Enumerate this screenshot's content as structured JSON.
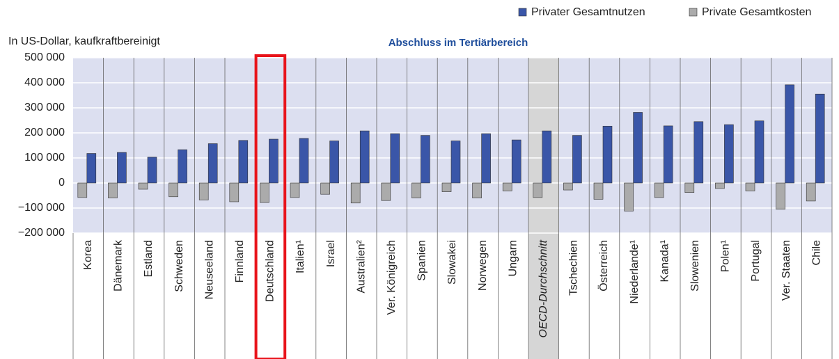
{
  "chart_data": {
    "type": "bar",
    "title": "Abschluss im Tertiärbereich",
    "ylabel": "In US-Dollar, kaufkraftbereinigt",
    "categories": [
      "Korea",
      "Dänemark",
      "Estland",
      "Schweden",
      "Neuseeland",
      "Finnland",
      "Deutschland",
      "Italien¹",
      "Israel",
      "Australien²",
      "Ver. Königreich",
      "Spanien",
      "Slowakei",
      "Norwegen",
      "Ungarn",
      "OECD-Durchschnitt",
      "Tschechien",
      "Österreich",
      "Niederlande¹",
      "Kanada¹",
      "Slowenien",
      "Polen¹",
      "Portugal",
      "Ver. Staaten",
      "Chile"
    ],
    "series": [
      {
        "name": "Privater Gesamtnutzen",
        "color": "#3a56a8",
        "values": [
          118000,
          122000,
          103000,
          133000,
          157000,
          170000,
          175000,
          178000,
          168000,
          208000,
          197000,
          190000,
          168000,
          197000,
          172000,
          208000,
          190000,
          227000,
          282000,
          228000,
          245000,
          233000,
          248000,
          392000,
          355000
        ]
      },
      {
        "name": "Private Gesamtkosten",
        "color": "#ababab",
        "values": [
          -58000,
          -60000,
          -25000,
          -55000,
          -68000,
          -75000,
          -78000,
          -58000,
          -45000,
          -80000,
          -70000,
          -60000,
          -35000,
          -60000,
          -32000,
          -58000,
          -28000,
          -65000,
          -112000,
          -58000,
          -38000,
          -22000,
          -32000,
          -105000,
          -72000
        ]
      }
    ],
    "ylim": [
      -200000,
      500000
    ],
    "yticks": [
      {
        "value": -200000,
        "label": "−200 000"
      },
      {
        "value": -100000,
        "label": "−100 000"
      },
      0,
      {
        "value": 100000,
        "label": "100 000"
      },
      {
        "value": 200000,
        "label": "200 000"
      },
      {
        "value": 300000,
        "label": "300 000"
      },
      {
        "value": 400000,
        "label": "400 000"
      },
      {
        "value": 500000,
        "label": "500 000"
      }
    ],
    "grid": true
  }
}
